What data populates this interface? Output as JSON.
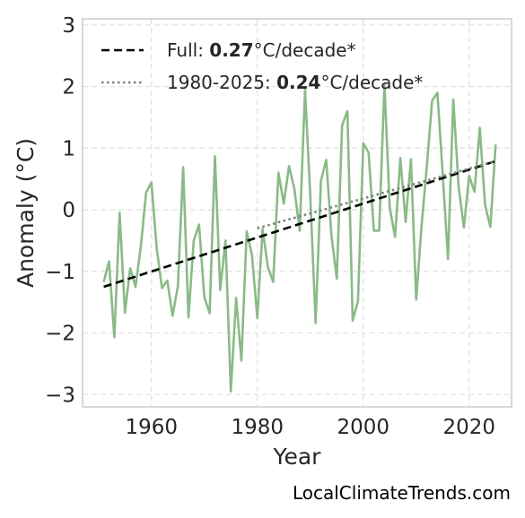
{
  "chart_data": {
    "type": "line",
    "xlabel": "Year",
    "ylabel": "Anomaly (°C)",
    "xlim": [
      1947,
      2028
    ],
    "ylim": [
      -3.2,
      3.1
    ],
    "xticks": [
      1960,
      1980,
      2000,
      2020
    ],
    "yticks": [
      -3,
      -2,
      -1,
      0,
      1,
      2,
      3
    ],
    "ytick_labels": [
      "−3",
      "−2",
      "−1",
      "0",
      "1",
      "2",
      "3"
    ],
    "grid": true,
    "legend_position": "top-left",
    "series": [
      {
        "kind": "anomaly",
        "color": "#8aba87",
        "x": [
          1951,
          1952,
          1953,
          1954,
          1955,
          1956,
          1957,
          1958,
          1959,
          1960,
          1961,
          1962,
          1963,
          1964,
          1965,
          1966,
          1967,
          1968,
          1969,
          1970,
          1971,
          1972,
          1973,
          1974,
          1975,
          1976,
          1977,
          1978,
          1979,
          1980,
          1981,
          1982,
          1983,
          1984,
          1985,
          1986,
          1987,
          1988,
          1989,
          1990,
          1991,
          1992,
          1993,
          1994,
          1995,
          1996,
          1997,
          1998,
          1999,
          2000,
          2001,
          2002,
          2003,
          2004,
          2005,
          2006,
          2007,
          2008,
          2009,
          2010,
          2011,
          2012,
          2013,
          2014,
          2015,
          2016,
          2017,
          2018,
          2019,
          2020,
          2021,
          2022,
          2023,
          2024,
          2025
        ],
        "y": [
          -1.17,
          -0.84,
          -2.07,
          -0.05,
          -1.67,
          -0.95,
          -1.25,
          -0.6,
          0.28,
          0.44,
          -0.62,
          -1.27,
          -1.15,
          -1.72,
          -1.24,
          0.69,
          -1.75,
          -0.5,
          -0.24,
          -1.42,
          -1.68,
          0.87,
          -1.3,
          -0.5,
          -2.95,
          -1.43,
          -2.45,
          -0.35,
          -0.74,
          -1.76,
          -0.31,
          -0.93,
          -1.17,
          0.6,
          0.1,
          0.71,
          0.34,
          -0.34,
          1.95,
          0.2,
          -1.84,
          0.47,
          0.81,
          -0.43,
          -1.12,
          1.37,
          1.6,
          -1.8,
          -1.48,
          1.08,
          0.93,
          -0.34,
          -0.34,
          2.04,
          0.03,
          -0.44,
          0.84,
          -0.2,
          0.82,
          -1.46,
          -0.27,
          0.71,
          1.77,
          1.9,
          0.58,
          -0.8,
          1.79,
          0.38,
          -0.29,
          0.55,
          0.29,
          1.33,
          0.08,
          -0.28,
          1.06
        ]
      },
      {
        "kind": "trend-full",
        "color": "#000000",
        "dash": "dashed",
        "x": [
          1951,
          2025
        ],
        "y": [
          -1.25,
          0.79
        ]
      },
      {
        "kind": "trend-1980",
        "color": "#7f7f7f",
        "dash": "dotted",
        "x": [
          1980,
          2025
        ],
        "y": [
          -0.3,
          0.79
        ]
      }
    ],
    "legend": [
      {
        "prefix": "Full: ",
        "value": "0.27",
        "suffix": "°C/decade*",
        "style": "dashed",
        "color": "#000000"
      },
      {
        "prefix": "1980-2025: ",
        "value": "0.24",
        "suffix": "°C/decade*",
        "style": "dotted",
        "color": "#7f7f7f"
      }
    ]
  },
  "credit": "LocalClimateTrends.com"
}
